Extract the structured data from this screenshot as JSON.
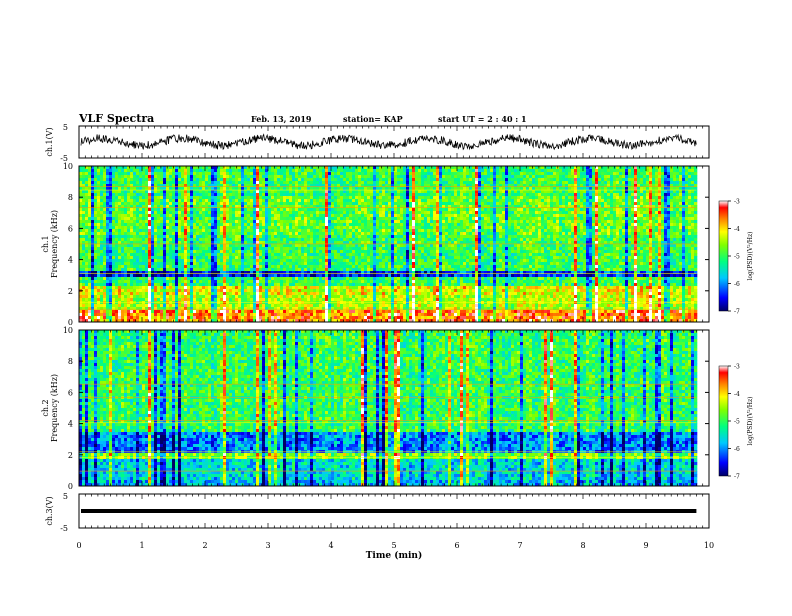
{
  "header": {
    "title": "VLF Spectra",
    "date": "Feb. 13, 2019",
    "station": "station= KAP",
    "start_ut": "start  UT =   2 : 40 : 1"
  },
  "colors": {
    "waveform": "#000000",
    "spectrogram_scale": [
      "#000066",
      "#0000ff",
      "#00c8ff",
      "#00ff80",
      "#7fff00",
      "#ffff00",
      "#ff7f00",
      "#ff0000",
      "#ffffff"
    ]
  },
  "chart_data": [
    {
      "id": "ch1-waveform",
      "type": "line",
      "ylabel": "ch.1(V)",
      "ylim": [
        -5,
        5
      ],
      "yticks": [
        5,
        -5
      ],
      "xlim": [
        0,
        10
      ],
      "description_series": "ch.1 voltage waveform, oscillating roughly between -2 and +2 V with slow periodic swells about every 1.3 minutes",
      "x_end": 9.8
    },
    {
      "id": "ch1-spectrogram",
      "type": "heatmap",
      "ylabel": "ch.1 Frequency (kHz)",
      "ylim": [
        0,
        10
      ],
      "yticks": [
        0,
        2,
        4,
        6,
        8,
        10
      ],
      "xlim": [
        0,
        10
      ],
      "x_end": 9.8,
      "colorbar": {
        "label": "log(PSD)(V²/Hz)",
        "ticks": [
          -3,
          -4,
          -5,
          -6,
          -7
        ],
        "range": [
          -7,
          -3
        ]
      },
      "bands": [
        {
          "from": 0.0,
          "to": 0.8,
          "level": -3.6
        },
        {
          "from": 0.8,
          "to": 1.8,
          "level": -4.4
        },
        {
          "from": 1.8,
          "to": 2.4,
          "level": -4.2
        },
        {
          "from": 2.4,
          "to": 2.8,
          "level": -5.0
        },
        {
          "from": 2.8,
          "to": 3.3,
          "level": -6.4
        },
        {
          "from": 3.3,
          "to": 5.5,
          "level": -5.0
        },
        {
          "from": 5.5,
          "to": 8.0,
          "level": -4.8
        },
        {
          "from": 8.0,
          "to": 10.0,
          "level": -5.0
        }
      ]
    },
    {
      "id": "ch2-spectrogram",
      "type": "heatmap",
      "ylabel": "ch.2 Frequency (kHz)",
      "ylim": [
        0,
        10
      ],
      "yticks": [
        0,
        2,
        4,
        6,
        8,
        10
      ],
      "xlim": [
        0,
        10
      ],
      "x_end": 9.8,
      "colorbar": {
        "label": "log(PSD)(V²/Hz)",
        "ticks": [
          -3,
          -4,
          -5,
          -6,
          -7
        ],
        "range": [
          -7,
          -3
        ]
      },
      "bands": [
        {
          "from": 0.0,
          "to": 0.3,
          "level": -5.8
        },
        {
          "from": 0.3,
          "to": 1.8,
          "level": -5.6
        },
        {
          "from": 1.8,
          "to": 2.2,
          "level": -4.6
        },
        {
          "from": 2.2,
          "to": 3.4,
          "level": -6.0
        },
        {
          "from": 3.4,
          "to": 8.0,
          "level": -5.0
        },
        {
          "from": 8.0,
          "to": 10.0,
          "level": -5.0
        }
      ]
    },
    {
      "id": "ch3-waveform",
      "type": "line",
      "ylabel": "ch.3(V)",
      "ylim": [
        -5,
        5
      ],
      "yticks": [
        5,
        -5
      ],
      "xlim": [
        0,
        10
      ],
      "x_end": 9.8,
      "constant_value": 0
    }
  ],
  "xaxis": {
    "label": "Time  (min)",
    "ticks": [
      0,
      1,
      2,
      3,
      4,
      5,
      6,
      7,
      8,
      9,
      10
    ],
    "tick_labels": [
      "0",
      "1",
      "2",
      "3",
      "4",
      "5",
      "6",
      "7",
      "8",
      "9",
      "10"
    ]
  },
  "labels": {
    "ch1_v": "ch.1(V)",
    "ch1_name": "ch.1",
    "freq": "Frequency  (kHz)",
    "ch2_name": "ch.2",
    "ch3_v": "ch.3(V)",
    "cbar_label": "log(PSD)(V",
    "cbar_sup": "2",
    "cbar_tail": "/Hz)"
  }
}
